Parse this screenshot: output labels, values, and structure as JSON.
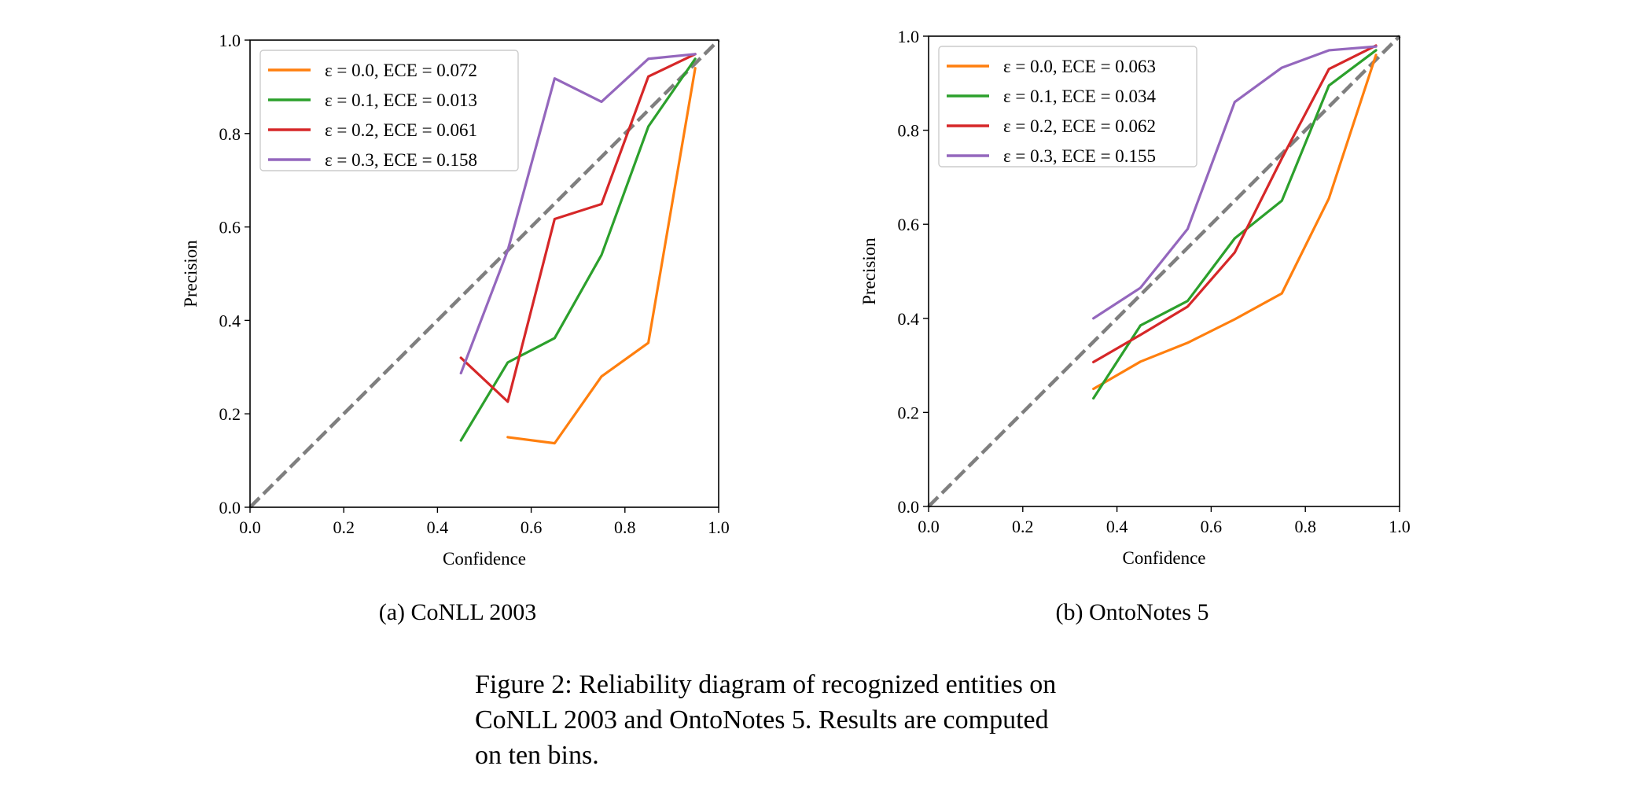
{
  "figure": {
    "caption_lines": [
      "Figure 2: Reliability diagram of recognized entities on",
      "CoNLL 2003 and OntoNotes 5. Results are computed",
      "on ten bins."
    ]
  },
  "colors": {
    "eps_0_0": "#ff7f0e",
    "eps_0_1": "#2ca02c",
    "eps_0_2": "#d62728",
    "eps_0_3": "#9467bd",
    "diagonal": "#7f7f7f"
  },
  "chart_data": [
    {
      "type": "line",
      "subcaption": "(a) CoNLL 2003",
      "xlabel": "Confidence",
      "ylabel": "Precision",
      "xlim": [
        0.0,
        1.0
      ],
      "ylim": [
        0.0,
        1.0
      ],
      "xticks": [
        "0.0",
        "0.2",
        "0.4",
        "0.6",
        "0.8",
        "1.0"
      ],
      "yticks": [
        "0.0",
        "0.2",
        "0.4",
        "0.6",
        "0.8",
        "1.0"
      ],
      "legend_position": "top-left",
      "reference_line": {
        "style": "dashed",
        "x": [
          0,
          1
        ],
        "y": [
          0,
          1
        ]
      },
      "series": [
        {
          "name": "ε = 0.0, ECE = 0.072",
          "color": "#ff7f0e",
          "x": [
            0.55,
            0.65,
            0.75,
            0.85,
            0.95
          ],
          "y": [
            0.15,
            0.137,
            0.28,
            0.352,
            0.94
          ]
        },
        {
          "name": "ε = 0.1, ECE = 0.013",
          "color": "#2ca02c",
          "x": [
            0.45,
            0.55,
            0.65,
            0.75,
            0.85,
            0.95
          ],
          "y": [
            0.143,
            0.31,
            0.362,
            0.54,
            0.815,
            0.96
          ]
        },
        {
          "name": "ε = 0.2, ECE = 0.061",
          "color": "#d62728",
          "x": [
            0.45,
            0.55,
            0.65,
            0.75,
            0.85,
            0.95
          ],
          "y": [
            0.32,
            0.226,
            0.617,
            0.649,
            0.922,
            0.97
          ]
        },
        {
          "name": "ε = 0.3, ECE = 0.158",
          "color": "#9467bd",
          "x": [
            0.45,
            0.55,
            0.65,
            0.75,
            0.85,
            0.95
          ],
          "y": [
            0.287,
            0.55,
            0.918,
            0.868,
            0.96,
            0.97
          ]
        }
      ]
    },
    {
      "type": "line",
      "subcaption": "(b) OntoNotes 5",
      "xlabel": "Confidence",
      "ylabel": "Precision",
      "xlim": [
        0.0,
        1.0
      ],
      "ylim": [
        0.0,
        1.0
      ],
      "xticks": [
        "0.0",
        "0.2",
        "0.4",
        "0.6",
        "0.8",
        "1.0"
      ],
      "yticks": [
        "0.0",
        "0.2",
        "0.4",
        "0.6",
        "0.8",
        "1.0"
      ],
      "legend_position": "top-left",
      "reference_line": {
        "style": "dashed",
        "x": [
          0,
          1
        ],
        "y": [
          0,
          1
        ]
      },
      "series": [
        {
          "name": "ε = 0.0, ECE = 0.063",
          "color": "#ff7f0e",
          "x": [
            0.35,
            0.45,
            0.55,
            0.65,
            0.75,
            0.85,
            0.95
          ],
          "y": [
            0.25,
            0.308,
            0.348,
            0.398,
            0.453,
            0.655,
            0.96
          ]
        },
        {
          "name": "ε = 0.1, ECE = 0.034",
          "color": "#2ca02c",
          "x": [
            0.35,
            0.45,
            0.55,
            0.65,
            0.75,
            0.85,
            0.95
          ],
          "y": [
            0.23,
            0.385,
            0.437,
            0.57,
            0.65,
            0.895,
            0.97
          ]
        },
        {
          "name": "ε = 0.2, ECE = 0.062",
          "color": "#d62728",
          "x": [
            0.35,
            0.45,
            0.55,
            0.65,
            0.75,
            0.85,
            0.95
          ],
          "y": [
            0.307,
            0.365,
            0.425,
            0.54,
            0.74,
            0.93,
            0.98
          ]
        },
        {
          "name": "ε = 0.3, ECE = 0.155",
          "color": "#9467bd",
          "x": [
            0.35,
            0.45,
            0.55,
            0.65,
            0.75,
            0.85,
            0.95
          ],
          "y": [
            0.4,
            0.465,
            0.59,
            0.86,
            0.933,
            0.97,
            0.978
          ]
        }
      ]
    }
  ]
}
